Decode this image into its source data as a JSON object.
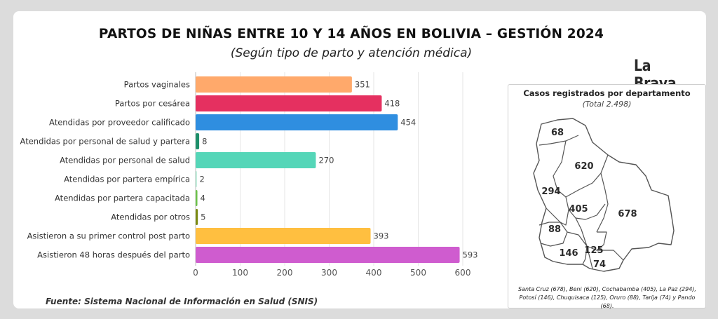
{
  "header": {
    "title": "PARTOS DE NIÑAS ENTRE 10 Y 14 AÑOS EN BOLIVIA – GESTIÓN 2024",
    "subtitle": "(Según tipo de parto y atención médica)",
    "brand": "La Brava"
  },
  "chart_data": {
    "type": "bar",
    "orientation": "horizontal",
    "categories": [
      "Partos vaginales",
      "Partos por cesárea",
      "Atendidas por proveedor calificado",
      "Atendidas por personal de salud y partera",
      "Atendidas por personal de salud",
      "Atendidas por partera empírica",
      "Atendidas por partera capacitada",
      "Atendidas por otros",
      "Asistieron a su primer control post parto",
      "Asistieron 48 horas después del parto"
    ],
    "values": [
      351,
      418,
      454,
      8,
      270,
      2,
      4,
      5,
      393,
      593
    ],
    "colors": [
      "#ffa96b",
      "#e53060",
      "#2f8ee0",
      "#1e8f6a",
      "#55d6b8",
      "#9be0c4",
      "#6cc24a",
      "#7a8a12",
      "#ffbf40",
      "#cf5ccf"
    ],
    "xlim": [
      0,
      600
    ],
    "xticks": [
      0,
      100,
      200,
      300,
      400,
      500,
      600
    ],
    "grid": true,
    "legend": "none"
  },
  "source": "Fuente: Sistema Nacional de Información en Salud (SNIS)",
  "map": {
    "title": "Casos registrados por departamento",
    "total": "(Total 2.498)",
    "labels": [
      {
        "department": "Pando",
        "value": "68"
      },
      {
        "department": "Beni",
        "value": "620"
      },
      {
        "department": "La Paz",
        "value": "294"
      },
      {
        "department": "Cochabamba",
        "value": "405"
      },
      {
        "department": "Santa Cruz",
        "value": "678"
      },
      {
        "department": "Oruro",
        "value": "88"
      },
      {
        "department": "Potosí",
        "value": "146"
      },
      {
        "department": "Chuquisaca",
        "value": "125"
      },
      {
        "department": "Tarija",
        "value": "74"
      }
    ],
    "note_line1": "Santa Cruz (678), Beni (620), Cochabamba (405), La Paz (294),",
    "note_line2": "Potosí (146), Chuquisaca (125), Oruro (88), Tarija (74) y Pando (68)."
  }
}
